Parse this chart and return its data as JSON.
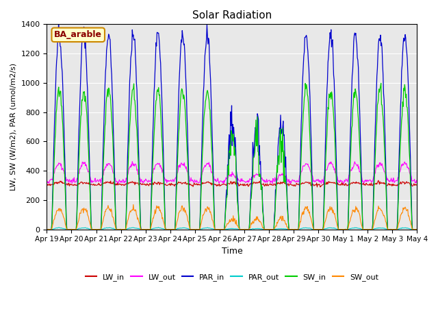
{
  "title": "Solar Radiation",
  "xlabel": "Time",
  "ylabel": "LW, SW (W/m2), PAR (umol/m2/s)",
  "ylim": [
    0,
    1400
  ],
  "annotation_label": "BA_arable",
  "annotation_bg": "#ffffcc",
  "annotation_border": "#cc8800",
  "colors": {
    "LW_in": "#cc0000",
    "LW_out": "#ff00ff",
    "PAR_in": "#0000cc",
    "PAR_out": "#00cccc",
    "SW_in": "#00cc00",
    "SW_out": "#ff8800"
  },
  "n_days": 15,
  "points_per_day": 48,
  "tick_labels": [
    "Apr 19",
    "Apr 20",
    "Apr 21",
    "Apr 22",
    "Apr 23",
    "Apr 24",
    "Apr 25",
    "Apr 26",
    "Apr 27",
    "Apr 28",
    "Apr 29",
    "Apr 30",
    "May 1",
    "May 2",
    "May 3",
    "May 4"
  ],
  "tick_positions": [
    0,
    1,
    2,
    3,
    4,
    5,
    6,
    7,
    8,
    9,
    10,
    11,
    12,
    13,
    14,
    15
  ],
  "cloudy_days": [
    7,
    8,
    9
  ],
  "yticks": [
    0,
    200,
    400,
    600,
    800,
    1000,
    1200,
    1400
  ]
}
